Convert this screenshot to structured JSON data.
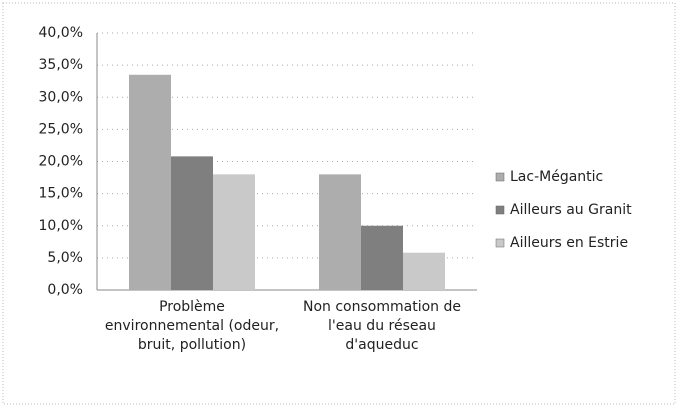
{
  "chart_data": {
    "type": "bar",
    "categories": [
      "Problème environnemental (odeur, bruit, pollution)",
      "Non consommation de l'eau du réseau d'aqueduc"
    ],
    "series": [
      {
        "name": "Lac-Mégantic",
        "color": "#adadad",
        "values": [
          33.5,
          18.0
        ]
      },
      {
        "name": "Ailleurs au Granit",
        "color": "#7f7f7f",
        "values": [
          20.8,
          10.0
        ]
      },
      {
        "name": "Ailleurs en Estrie",
        "color": "#c9c9c9",
        "values": [
          18.0,
          5.8
        ]
      }
    ],
    "ylim": [
      0,
      40
    ],
    "yticks": [
      {
        "value": 0,
        "label": "0,0%"
      },
      {
        "value": 5,
        "label": "5,0%"
      },
      {
        "value": 10,
        "label": "10,0%"
      },
      {
        "value": 15,
        "label": "15,0%"
      },
      {
        "value": 20,
        "label": "20,0%"
      },
      {
        "value": 25,
        "label": "25,0%"
      },
      {
        "value": 30,
        "label": "30,0%"
      },
      {
        "value": 35,
        "label": "35,0%"
      },
      {
        "value": 40,
        "label": "40,0%"
      }
    ],
    "grid": true,
    "legend": "right"
  }
}
